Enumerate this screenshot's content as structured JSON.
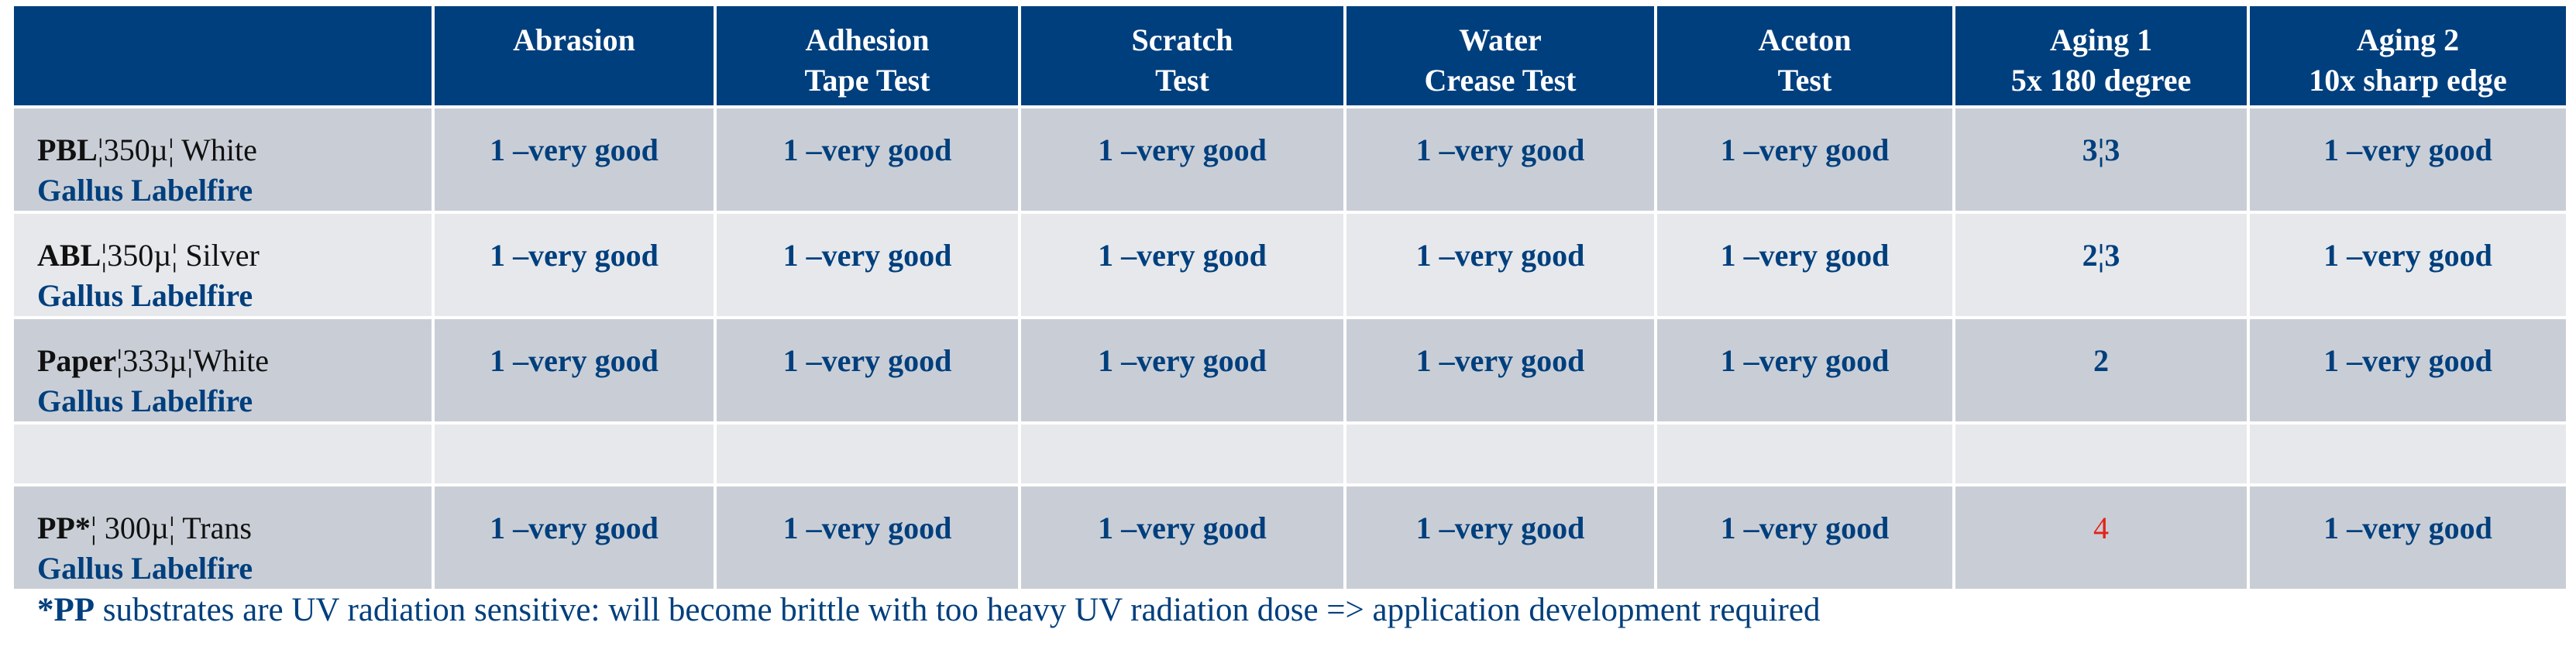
{
  "colors": {
    "header_bg": "#003F7D",
    "header_text": "#ffffff",
    "row_dark": "#C9CED6",
    "row_light": "#E6E8EC",
    "value_text": "#003F7D",
    "warning_value": "#E2231A"
  },
  "columns": [
    {
      "key": "material",
      "line1": "",
      "line2": ""
    },
    {
      "key": "abrasion",
      "line1": "Abrasion",
      "line2": ""
    },
    {
      "key": "adhesion",
      "line1": "Adhesion",
      "line2": "Tape Test"
    },
    {
      "key": "scratch",
      "line1": "Scratch",
      "line2": "Test"
    },
    {
      "key": "water",
      "line1": "Water",
      "line2": "Crease Test"
    },
    {
      "key": "aceton",
      "line1": "Aceton",
      "line2": "Test"
    },
    {
      "key": "aging1",
      "line1": "Aging 1",
      "line2": "5x 180 degree"
    },
    {
      "key": "aging2",
      "line1": "Aging 2",
      "line2": "10x sharp edge"
    }
  ],
  "rows": [
    {
      "code": "PBL",
      "spec": "¦350µ¦ White",
      "brand": "Gallus Labelfire",
      "values": [
        "1 –very good",
        "1 –very good",
        "1 –very good",
        "1 –very good",
        "1 –very good",
        "3¦3",
        "1 –very good"
      ]
    },
    {
      "code": "ABL",
      "spec": "¦350µ¦ Silver",
      "brand": "Gallus Labelfire",
      "values": [
        "1 –very good",
        "1 –very good",
        "1 –very good",
        "1 –very good",
        "1 –very good",
        "2¦3",
        "1 –very good"
      ]
    },
    {
      "code": "Paper",
      "spec": "¦333µ¦White",
      "brand": "Gallus Labelfire",
      "values": [
        "1 –very good",
        "1 –very good",
        "1 –very good",
        "1 –very good",
        "1 –very good",
        "2",
        "1 –very good"
      ]
    },
    {
      "code": "PP*",
      "spec": "¦ 300µ¦ Trans",
      "brand": "Gallus Labelfire",
      "values": [
        "1 –very good",
        "1 –very good",
        "1 –very good",
        "1 –very good",
        "1 –very good",
        "4",
        "1 –very good"
      ]
    }
  ],
  "footnote": {
    "marker": "*PP",
    "text": " substrates are UV radiation sensitive: will become brittle with too heavy UV radiation dose  => application development required"
  }
}
